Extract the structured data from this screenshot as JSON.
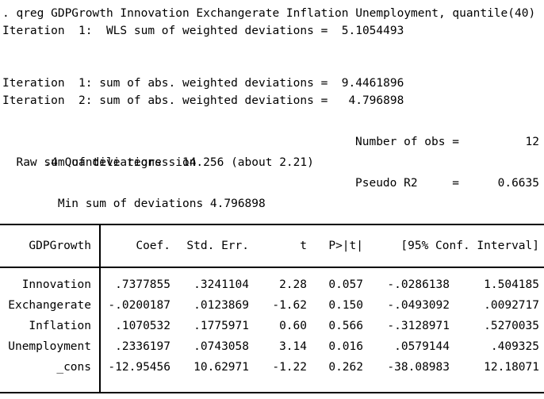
{
  "colors": {
    "text": "#000000",
    "background": "#ffffff"
  },
  "command": ". qreg GDPGrowth Innovation Exchangerate Inflation Unemployment, quantile(40)",
  "iterations": {
    "wls_line": "Iteration  1:  WLS sum of weighted deviations =  5.1054493",
    "abs_line_1": "Iteration  1: sum of abs. weighted deviations =  9.4461896",
    "abs_line_2": "Iteration  2: sum of abs. weighted deviations =   4.796898"
  },
  "summary": {
    "title": ".4 Quantile regression",
    "raw_sum_line": "  Raw sum of deviations   14.256 (about 2.21)",
    "min_sum_line": "  Min sum of deviations 4.796898",
    "number_of_obs_label": "Number of obs =",
    "number_of_obs_value": "12",
    "pseudo_r2_label": "Pseudo R2     =",
    "pseudo_r2_value": "0.6635"
  },
  "table": {
    "dependent_variable": "GDPGrowth",
    "columns": {
      "coef": "Coef.",
      "std_err": "Std. Err.",
      "t": "t",
      "p": "P>|t|",
      "ci": "[95% Conf. Interval]"
    },
    "rows": [
      {
        "variable": "Innovation",
        "coef": ".7377855",
        "std_err": ".3241104",
        "t": "2.28",
        "p": "0.057",
        "ci_low": "-.0286138",
        "ci_high": "1.504185"
      },
      {
        "variable": "Exchangerate",
        "coef": "-.0200187",
        "std_err": ".0123869",
        "t": "-1.62",
        "p": "0.150",
        "ci_low": "-.0493092",
        "ci_high": ".0092717"
      },
      {
        "variable": "Inflation",
        "coef": ".1070532",
        "std_err": ".1775971",
        "t": "0.60",
        "p": "0.566",
        "ci_low": "-.3128971",
        "ci_high": ".5270035"
      },
      {
        "variable": "Unemployment",
        "coef": ".2336197",
        "std_err": ".0743058",
        "t": "3.14",
        "p": "0.016",
        "ci_low": ".0579144",
        "ci_high": ".409325"
      },
      {
        "variable": "_cons",
        "coef": "-12.95456",
        "std_err": "10.62971",
        "t": "-1.22",
        "p": "0.262",
        "ci_low": "-38.08983",
        "ci_high": "12.18071"
      }
    ]
  }
}
